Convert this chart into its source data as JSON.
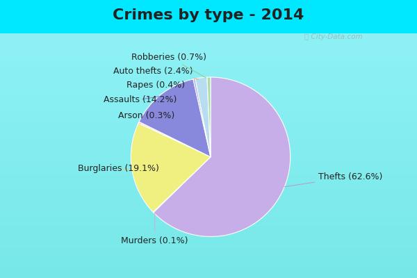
{
  "title": "Crimes by type - 2014",
  "labels": [
    "Thefts",
    "Murders",
    "Burglaries",
    "Arson",
    "Assaults",
    "Rapes",
    "Auto thefts",
    "Robberies"
  ],
  "percentages": [
    62.6,
    0.1,
    19.1,
    0.3,
    14.2,
    0.4,
    2.4,
    0.7
  ],
  "colors": [
    "#c8aee8",
    "#d4c8e8",
    "#f0f080",
    "#ffcccc",
    "#8888dd",
    "#aaaaee",
    "#b8ddf0",
    "#aaddaa"
  ],
  "background_cyan": "#00e8ff",
  "background_inner": "#dff0e8",
  "title_fontsize": 16,
  "label_fontsize": 9,
  "startangle": 90,
  "wedge_edgecolor": "white",
  "wedge_linewidth": 0.8,
  "label_colors": {
    "Thefts": "#9999bb",
    "Murders": "#aaaacc",
    "Burglaries": "#cccc88",
    "Arson": "#ffaaaa",
    "Assaults": "#8888cc",
    "Rapes": "#8888cc",
    "Auto thefts": "#ddaa88",
    "Robberies": "#88aa88"
  }
}
